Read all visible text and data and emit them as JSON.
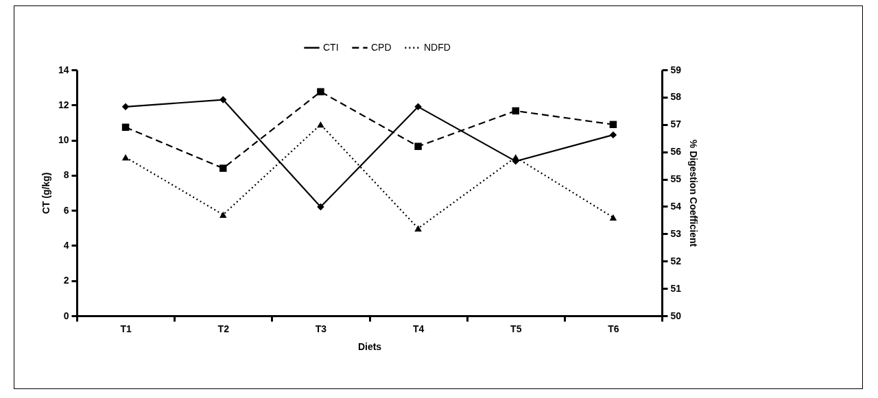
{
  "chart_data": {
    "type": "line",
    "xlabel": "Diets",
    "ylabel": "CT (g/kg)",
    "y2label": "% Digestion Coefficient",
    "categories": [
      "T1",
      "T2",
      "T3",
      "T4",
      "T5",
      "T6"
    ],
    "series": [
      {
        "name": "CTI",
        "color": "#000000",
        "marker": "diamond",
        "line_style": "solid",
        "values": [
          11.9,
          12.3,
          6.2,
          11.9,
          8.8,
          10.3
        ]
      },
      {
        "name": "CPD",
        "color": "#000000",
        "marker": "square",
        "line_style": "dashed",
        "axis": "y2",
        "values": [
          56.9,
          55.4,
          58.2,
          56.2,
          57.5,
          57.0
        ]
      },
      {
        "name": "NDFD",
        "color": "#000000",
        "marker": "triangle",
        "line_style": "dotted",
        "axis": "y2",
        "values": [
          55.8,
          53.7,
          57.0,
          53.2,
          55.8,
          53.6
        ]
      }
    ],
    "ylim": [
      0,
      14
    ],
    "yticks": [
      0,
      2,
      4,
      6,
      8,
      10,
      12,
      14
    ],
    "y2lim": [
      50,
      59
    ],
    "y2ticks": [
      50,
      51,
      52,
      53,
      54,
      55,
      56,
      57,
      58,
      59
    ],
    "grid": false,
    "legend": "top"
  }
}
